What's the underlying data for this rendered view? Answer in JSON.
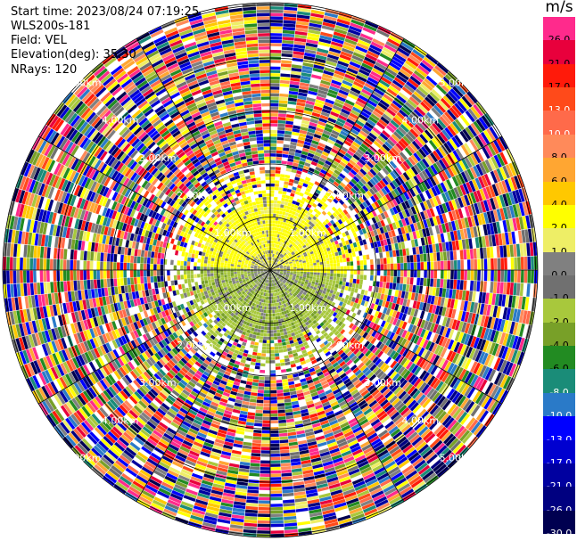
{
  "info": {
    "start_time": "Start time: 2023/08/24 07:19:25",
    "instrument": "WLS200s-181",
    "field": "Field: VEL",
    "elevation": "Elevation(deg): 35.30",
    "nrays": "NRays: 120"
  },
  "range_rings": [
    {
      "label": "1.00km",
      "km": 1
    },
    {
      "label": "2.00km",
      "km": 2
    },
    {
      "label": "3.00km",
      "km": 3
    },
    {
      "label": "4.00km",
      "km": 4
    },
    {
      "label": "5.00km",
      "km": 5
    }
  ],
  "colorbar": {
    "unit": "m/s",
    "levels": [
      {
        "label": "26.0",
        "color": "#ff2a8c"
      },
      {
        "label": "21.0",
        "color": "#e8003c"
      },
      {
        "label": "17.0",
        "color": "#ff1a0a"
      },
      {
        "label": "13.0",
        "color": "#ff4a1a"
      },
      {
        "label": "10.0",
        "color": "#ff6a4a"
      },
      {
        "label": "8.0",
        "color": "#ff8a5a"
      },
      {
        "label": "6.0",
        "color": "#ffa632"
      },
      {
        "label": "4.0",
        "color": "#ffc800"
      },
      {
        "label": "2.0",
        "color": "#ffff00"
      },
      {
        "label": "1.0",
        "color": "#eeee66"
      },
      {
        "label": "0.0",
        "color": "#808080"
      },
      {
        "label": "-1.0",
        "color": "#707070"
      },
      {
        "label": "-2.0",
        "color": "#a8c83c"
      },
      {
        "label": "-4.0",
        "color": "#78a028"
      },
      {
        "label": "-6.0",
        "color": "#228b22"
      },
      {
        "label": "-8.0",
        "color": "#1a8c78"
      },
      {
        "label": "-10.0",
        "color": "#2a7ac8"
      },
      {
        "label": "-13.0",
        "color": "#0000ff"
      },
      {
        "label": "-17.0",
        "color": "#0000d0"
      },
      {
        "label": "-21.0",
        "color": "#0000a0"
      },
      {
        "label": "-26.0",
        "color": "#000080"
      },
      {
        "label": "-30.0",
        "color": "#000050"
      }
    ]
  }
}
